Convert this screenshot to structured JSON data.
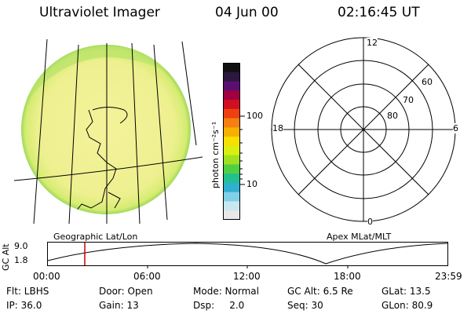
{
  "header": {
    "instrument": "Ultraviolet Imager",
    "date": "04 Jun 00",
    "time": "02:16:45 UT"
  },
  "colorbar": {
    "unit_label": "photon cm⁻²s⁻¹",
    "ticks": [
      "100",
      "10"
    ],
    "colors_top_to_bottom": [
      "#101010",
      "#2b1740",
      "#5a1070",
      "#a00040",
      "#d01020",
      "#ee4010",
      "#f58010",
      "#f8b000",
      "#f5e000",
      "#d8ef10",
      "#a0e020",
      "#50d040",
      "#20c090",
      "#30b0d0",
      "#80d0e8",
      "#c8e8f0",
      "#e8e8e8"
    ]
  },
  "left_panel": {
    "caption": "Geographic Lat/Lon",
    "disk_color": "#eef090",
    "edge_color": "#9ed95a"
  },
  "polar": {
    "caption": "Apex MLat/MLT",
    "mlt_labels": {
      "top": "12",
      "bottom": "0",
      "left": "18",
      "right": "6"
    },
    "lat_labels": [
      "60",
      "70",
      "80"
    ]
  },
  "strip": {
    "axis_title": "GC Alt",
    "y_labels": [
      "9.0",
      "1.8"
    ],
    "x_labels": [
      "00:00",
      "06:00",
      "12:00",
      "18:00",
      "23:59"
    ],
    "marker_time": "02:16",
    "marker_color": "#cc0000"
  },
  "info": {
    "row1": {
      "flt": "Flt: LBHS",
      "door": "Door: Open",
      "mode": "Mode: Normal",
      "gc_alt": "GC Alt: 6.5 Re",
      "glat": "GLat:  13.5"
    },
    "row2": {
      "ip": "IP: 36.0",
      "gain": "Gain: 13",
      "dsp": "Dsp:     2.0",
      "seq": "Seq: 30",
      "glon": "GLon:  80.9"
    }
  }
}
